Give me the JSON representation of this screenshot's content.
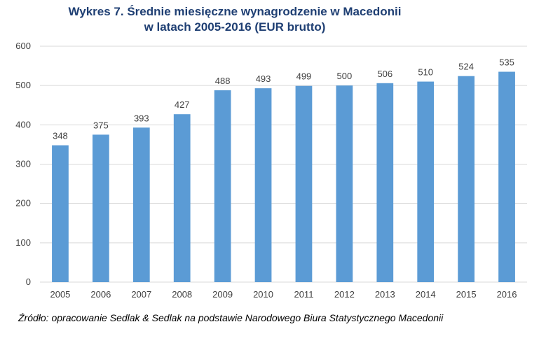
{
  "chart_data": {
    "type": "bar",
    "title_line1": "Wykres 7. Średnie miesięczne wynagrodzenie w Macedonii",
    "title_line2": "w latach 2005-2016 (EUR brutto)",
    "categories": [
      "2005",
      "2006",
      "2007",
      "2008",
      "2009",
      "2010",
      "2011",
      "2012",
      "2013",
      "2014",
      "2015",
      "2016"
    ],
    "values": [
      348,
      375,
      393,
      427,
      488,
      493,
      499,
      500,
      506,
      510,
      524,
      535
    ],
    "ylim": [
      0,
      600
    ],
    "yticks": [
      0,
      100,
      200,
      300,
      400,
      500,
      600
    ],
    "grid": true,
    "bar_color": "#5b9bd5",
    "grid_color": "#d9d9d9"
  },
  "source": "Źródło: opracowanie Sedlak & Sedlak na podstawie Narodowego Biura Statystycznego Macedonii"
}
